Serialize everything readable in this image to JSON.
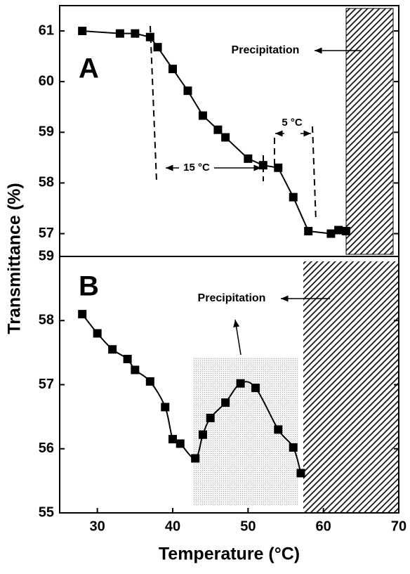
{
  "chart_data": [
    {
      "type": "line",
      "panel_label": "A",
      "ylabel": "Transmittance (%)",
      "x": [
        28,
        33,
        35,
        37,
        38,
        40,
        42,
        44,
        46,
        47,
        50,
        52,
        54,
        56,
        58,
        61,
        62,
        63
      ],
      "series": [
        {
          "color": "#000000",
          "values": [
            61.0,
            60.95,
            60.95,
            60.88,
            60.68,
            60.25,
            59.82,
            59.33,
            59.05,
            58.9,
            58.48,
            58.35,
            58.3,
            57.72,
            57.05,
            57.0,
            57.07,
            57.05
          ]
        }
      ],
      "xlim": [
        25,
        70
      ],
      "ylim": [
        56.55,
        61.5
      ],
      "yticks": [
        57,
        58,
        59,
        60,
        61
      ],
      "annotations": [
        "Precipitation",
        "15 °C",
        "5 °C"
      ]
    },
    {
      "type": "line",
      "panel_label": "B",
      "xlabel": "Temperature (°C)",
      "x": [
        28,
        30,
        32,
        34,
        35,
        37,
        39,
        40,
        41,
        43,
        44,
        45,
        47,
        49,
        51,
        54,
        56,
        57
      ],
      "series": [
        {
          "color": "#000000",
          "values": [
            58.1,
            57.8,
            57.55,
            57.4,
            57.23,
            57.05,
            56.65,
            56.15,
            56.08,
            55.85,
            56.22,
            56.48,
            56.72,
            57.02,
            56.95,
            56.3,
            56.02,
            55.62
          ]
        }
      ],
      "xlim": [
        25,
        70
      ],
      "ylim": [
        55,
        59
      ],
      "xticks": [
        30,
        40,
        50,
        60,
        70
      ],
      "yticks": [
        55,
        56,
        57,
        58,
        59
      ],
      "annotations": [
        "Precipitation"
      ]
    }
  ]
}
